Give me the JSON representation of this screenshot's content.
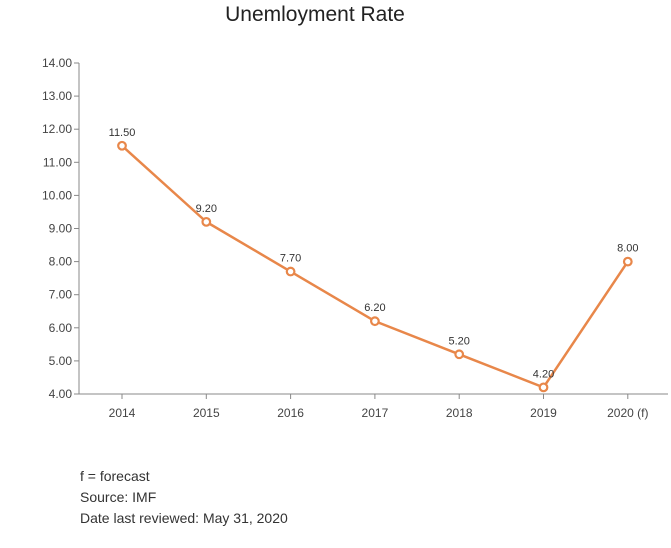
{
  "chart_data": {
    "type": "line",
    "title": "Unemloyment Rate",
    "xlabel": "",
    "ylabel": "",
    "categories": [
      "2014",
      "2015",
      "2016",
      "2017",
      "2018",
      "2019",
      "2020 (f)"
    ],
    "series": [
      {
        "values": [
          11.5,
          9.2,
          7.7,
          6.2,
          5.2,
          4.2,
          8.0
        ],
        "data_labels": [
          "11.50",
          "9.20",
          "7.70",
          "6.20",
          "5.20",
          "4.20",
          "8.00"
        ]
      }
    ],
    "ylim": [
      4,
      14
    ],
    "y_ticks": [
      4,
      5,
      6,
      7,
      8,
      9,
      10,
      11,
      12,
      13,
      14
    ],
    "y_tick_labels": [
      "4.00",
      "5.00",
      "6.00",
      "7.00",
      "8.00",
      "9.00",
      "10.00",
      "11.00",
      "12.00",
      "13.00",
      "14.00"
    ],
    "grid": false,
    "legend": "none"
  },
  "colors": {
    "series": "#e8874a",
    "axis": "#888888"
  },
  "notes": {
    "forecast": "f = forecast",
    "source": "Source: IMF",
    "reviewed": "Date last reviewed: May 31, 2020"
  }
}
